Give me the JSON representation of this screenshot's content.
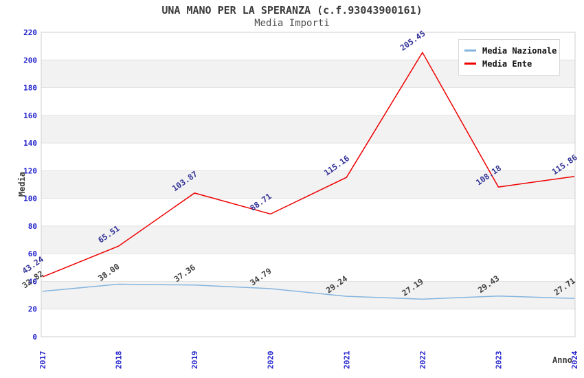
{
  "chart_data": {
    "type": "line",
    "title": "UNA MANO PER LA SPERANZA (c.f.93043900161)",
    "subtitle": "Media Importi",
    "xlabel": "Anno",
    "ylabel": "Media",
    "categories": [
      "2017",
      "2018",
      "2019",
      "2020",
      "2021",
      "2022",
      "2023",
      "2024"
    ],
    "yticks": [
      0,
      20,
      40,
      60,
      80,
      100,
      120,
      140,
      160,
      180,
      200,
      220
    ],
    "ylim": [
      0,
      220
    ],
    "grid": "horizontal-bands-alternating",
    "legend_position": "top-right",
    "series": [
      {
        "name": "Media Nazionale",
        "color": "#85b5de",
        "label_color": "#3d3d3d",
        "values": [
          32.82,
          38.0,
          37.36,
          34.79,
          29.24,
          27.19,
          29.43,
          27.71
        ]
      },
      {
        "name": "Media Ente",
        "color": "#ee0000",
        "label_color": "#333399",
        "values": [
          43.24,
          65.51,
          103.87,
          88.71,
          115.16,
          205.45,
          108.18,
          115.86
        ]
      }
    ],
    "colors": {
      "band_alt": "#f2f2f2",
      "grid_line": "#e2e2e2",
      "plot_border": "#cfcfcf",
      "tick_label": "#2222cc"
    }
  }
}
